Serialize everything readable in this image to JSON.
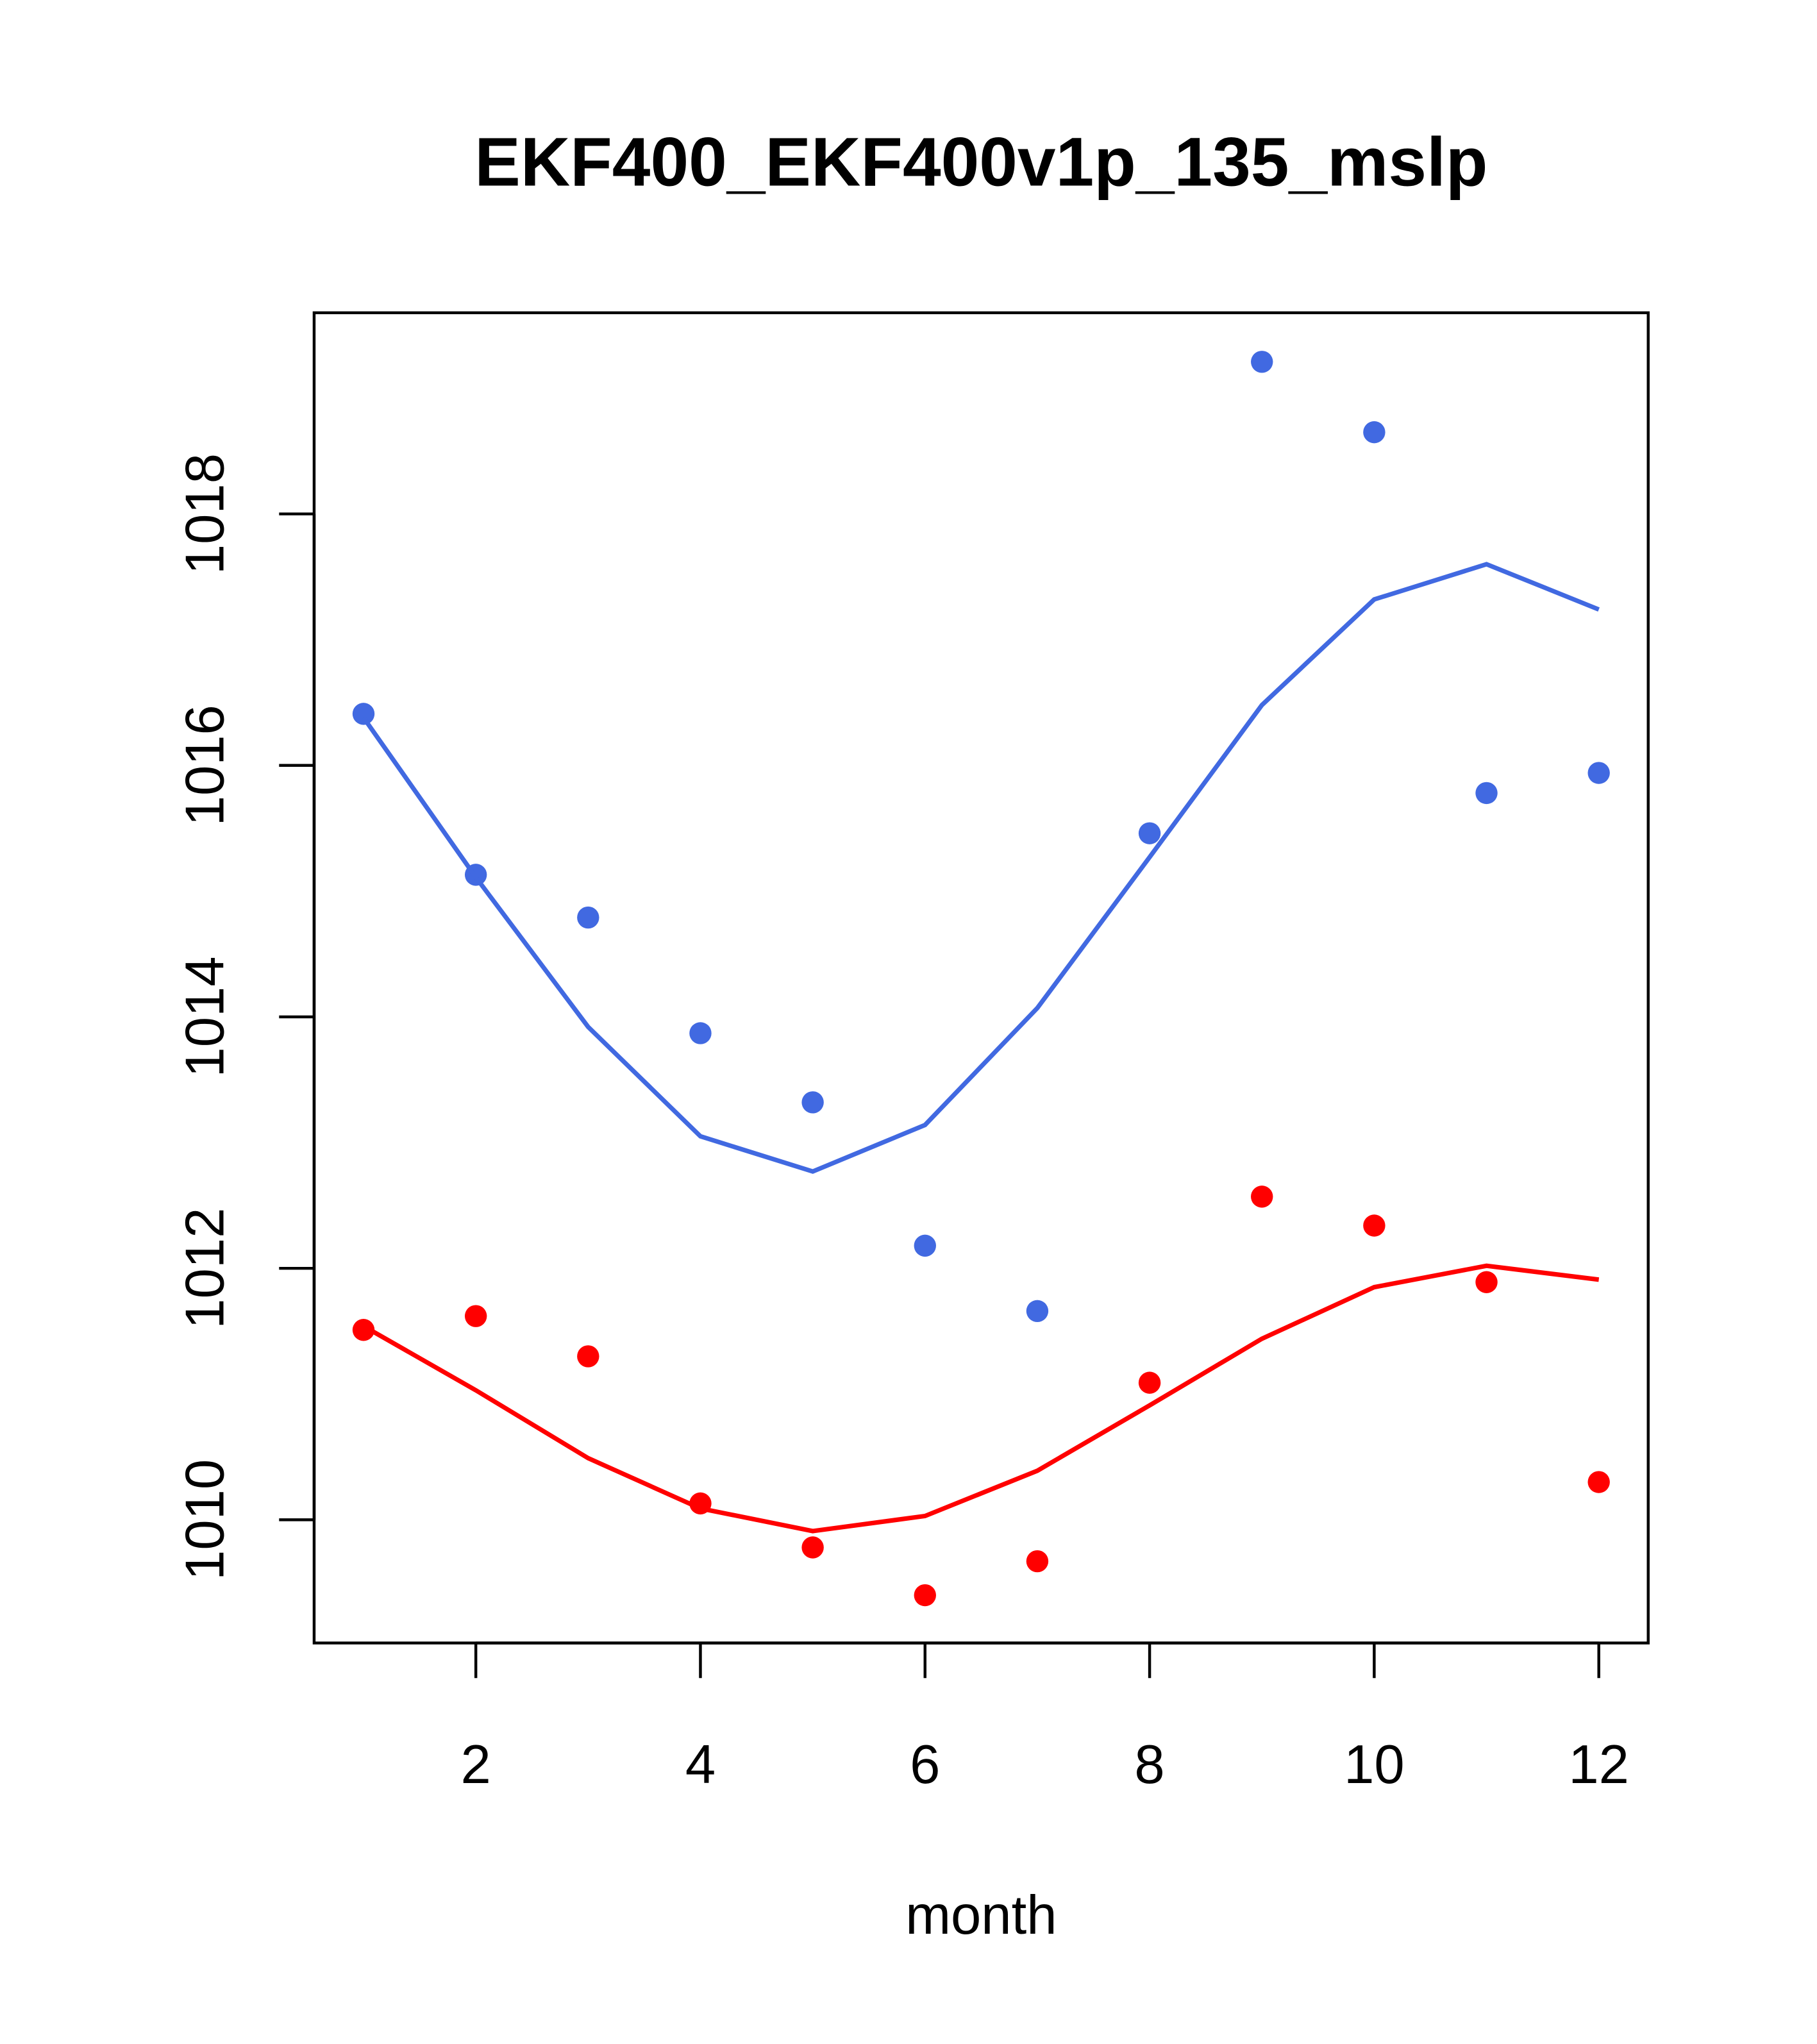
{
  "chart_data": {
    "type": "line",
    "title": "EKF400_EKF400v1p_135_mslp",
    "xlabel": "month",
    "ylabel": "",
    "xlim": [
      0.56,
      12.44
    ],
    "ylim": [
      1009.02,
      1019.6
    ],
    "xticks": [
      2,
      4,
      6,
      8,
      10,
      12
    ],
    "yticks": [
      1010,
      1012,
      1014,
      1016,
      1018
    ],
    "grid": false,
    "x": [
      1,
      2,
      3,
      4,
      5,
      6,
      7,
      8,
      9,
      10,
      11,
      12
    ],
    "series": [
      {
        "name": "blue points",
        "kind": "points",
        "color": "#4169E1",
        "values": [
          1016.41,
          1015.13,
          1014.79,
          1013.87,
          1013.32,
          1012.18,
          1011.66,
          1015.46,
          1019.21,
          1018.65,
          1015.78,
          1015.94
        ]
      },
      {
        "name": "blue line",
        "kind": "line",
        "color": "#4169E1",
        "values": [
          1016.38,
          1015.11,
          1013.92,
          1013.05,
          1012.77,
          1013.14,
          1014.07,
          1015.27,
          1016.48,
          1017.32,
          1017.6,
          1017.24
        ]
      },
      {
        "name": "red points",
        "kind": "points",
        "color": "#FF0000",
        "values": [
          1011.51,
          1011.62,
          1011.3,
          1010.13,
          1009.78,
          1009.4,
          1009.67,
          1011.09,
          1012.57,
          1012.34,
          1011.89,
          1010.3
        ]
      },
      {
        "name": "red line",
        "kind": "line",
        "color": "#FF0000",
        "values": [
          1011.54,
          1011.03,
          1010.49,
          1010.09,
          1009.91,
          1010.03,
          1010.39,
          1010.91,
          1011.44,
          1011.85,
          1012.02,
          1011.91
        ]
      }
    ]
  }
}
